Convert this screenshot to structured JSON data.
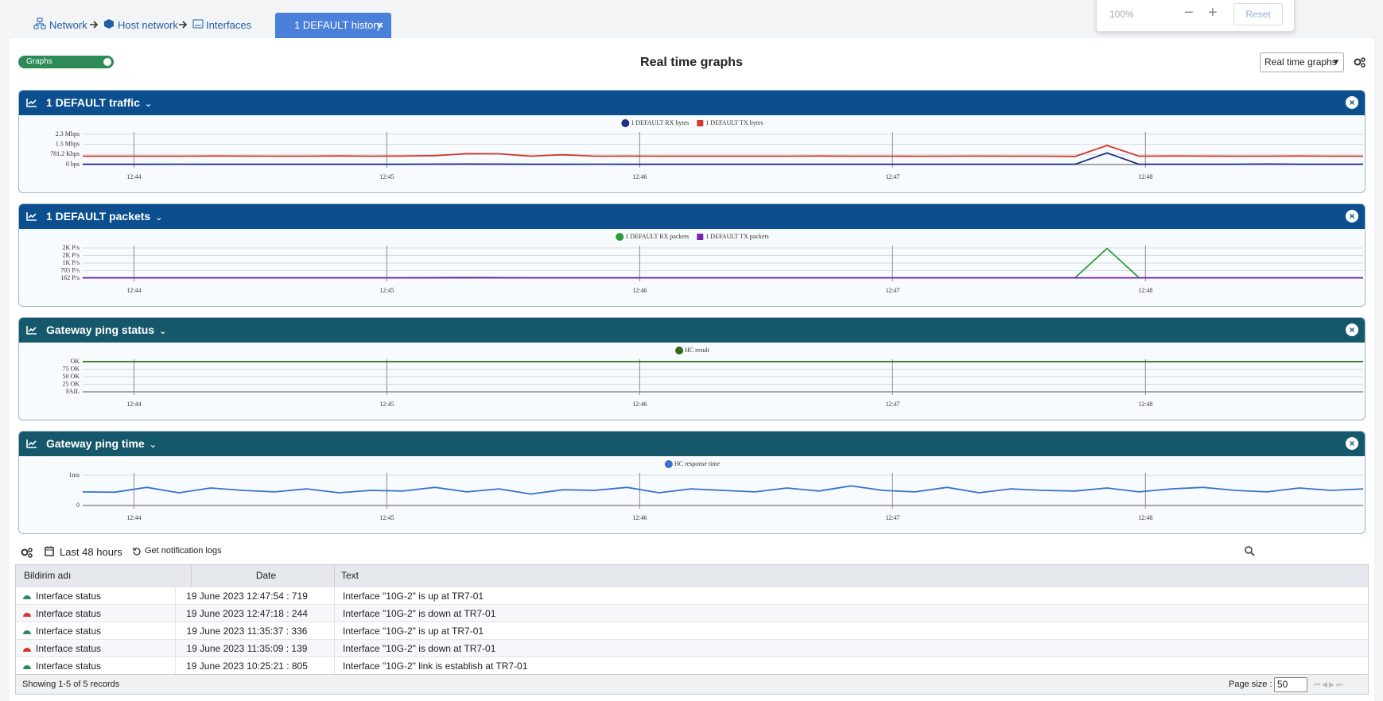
{
  "breadcrumb": [
    "Network",
    "Host network",
    "Interfaces"
  ],
  "tab": "1 DEFAULT history",
  "zoom": {
    "level": "100%",
    "reset": "Reset"
  },
  "toggle": "Graphs",
  "title": "Real time graphs",
  "view_select": "Real time graphs",
  "chart_data": [
    {
      "type": "line",
      "title": "1 DEFAULT traffic",
      "header_color": "#0b4f8e",
      "xticks": [
        "12:44",
        "12:45",
        "12:46",
        "12:47",
        "12:48"
      ],
      "ylim": [
        0,
        2343.6
      ],
      "yticks": [
        {
          "value": 0,
          "label": "0 bps"
        },
        {
          "value": 781.2,
          "label": "781.2 Kbps"
        },
        {
          "value": 1562.4,
          "label": "1.5 Mbps"
        },
        {
          "value": 2343.6,
          "label": "2.3 Mbps"
        }
      ],
      "series": [
        {
          "name": "1 DEFAULT RX bytes",
          "color": "#1f2d86",
          "marker": "circle",
          "values": [
            20,
            20,
            20,
            25,
            20,
            20,
            20,
            20,
            20,
            20,
            20,
            30,
            40,
            30,
            20,
            20,
            25,
            20,
            20,
            20,
            20,
            20,
            20,
            20,
            20,
            20,
            20,
            20,
            20,
            20,
            20,
            20,
            900,
            20,
            20,
            20,
            20,
            40,
            20,
            20,
            20
          ]
        },
        {
          "name": "1 DEFAULT TX bytes",
          "color": "#d0392b",
          "marker": "square",
          "values": [
            650,
            650,
            645,
            650,
            660,
            655,
            650,
            645,
            665,
            650,
            660,
            690,
            840,
            830,
            650,
            760,
            650,
            655,
            650,
            650,
            650,
            645,
            650,
            660,
            650,
            650,
            640,
            650,
            655,
            645,
            650,
            630,
            1480,
            650,
            660,
            655,
            650,
            650,
            660,
            650,
            650
          ]
        }
      ]
    },
    {
      "type": "line",
      "title": "1 DEFAULT packets",
      "header_color": "#0b4f8e",
      "xticks": [
        "12:44",
        "12:45",
        "12:46",
        "12:47",
        "12:48"
      ],
      "ylim": [
        162,
        2334
      ],
      "yticks": [
        {
          "value": 162,
          "label": "162 P/s"
        },
        {
          "value": 705,
          "label": "705 P/s"
        },
        {
          "value": 1248,
          "label": "1K P/s"
        },
        {
          "value": 1791,
          "label": "2K P/s"
        },
        {
          "value": 2334,
          "label": "2K P/s"
        }
      ],
      "series": [
        {
          "name": "1 DEFAULT RX packets",
          "color": "#2f9a3a",
          "marker": "circle",
          "values": [
            190,
            190,
            190,
            190,
            190,
            190,
            190,
            190,
            190,
            190,
            190,
            200,
            210,
            200,
            190,
            190,
            190,
            190,
            190,
            190,
            190,
            190,
            190,
            190,
            190,
            190,
            190,
            190,
            190,
            190,
            190,
            190,
            2300,
            190,
            190,
            190,
            190,
            190,
            190,
            190,
            190
          ]
        },
        {
          "name": "1 DEFAULT TX packets",
          "color": "#7a1fb0",
          "marker": "square",
          "values": [
            185,
            185,
            185,
            186,
            185,
            185,
            185,
            185,
            185,
            185,
            185,
            190,
            195,
            190,
            185,
            185,
            186,
            185,
            185,
            185,
            185,
            185,
            185,
            185,
            185,
            185,
            185,
            185,
            185,
            185,
            185,
            185,
            188,
            185,
            185,
            185,
            185,
            187,
            185,
            185,
            185
          ]
        }
      ]
    },
    {
      "type": "line",
      "title": "Gateway ping status",
      "header_color": "#16586b",
      "xticks": [
        "12:44",
        "12:45",
        "12:46",
        "12:47",
        "12:48"
      ],
      "ylim": [
        0,
        100
      ],
      "yticks": [
        {
          "value": 0,
          "label": "FAIL"
        },
        {
          "value": 25,
          "label": "25 OK"
        },
        {
          "value": 50,
          "label": "50 OK"
        },
        {
          "value": 75,
          "label": "75 OK"
        },
        {
          "value": 100,
          "label": "OK"
        }
      ],
      "series": [
        {
          "name": "HC result",
          "color": "#2e6b12",
          "marker": "circle",
          "values": [
            100,
            100,
            100,
            100,
            100,
            100,
            100,
            100,
            100,
            100,
            100
          ]
        }
      ]
    },
    {
      "type": "line",
      "title": "Gateway ping time",
      "header_color": "#16586b",
      "xticks": [
        "12:44",
        "12:45",
        "12:46",
        "12:47",
        "12:48"
      ],
      "ylim": [
        0,
        1
      ],
      "yticks": [
        0,
        {
          "value": 1,
          "label": "1ms"
        }
      ],
      "series": [
        {
          "name": "HC response time",
          "color": "#3a6fd0",
          "marker": "circle",
          "values": [
            0.45,
            0.44,
            0.6,
            0.42,
            0.58,
            0.5,
            0.45,
            0.55,
            0.42,
            0.5,
            0.48,
            0.6,
            0.45,
            0.55,
            0.38,
            0.52,
            0.5,
            0.6,
            0.42,
            0.55,
            0.5,
            0.45,
            0.58,
            0.48,
            0.65,
            0.5,
            0.45,
            0.6,
            0.42,
            0.55,
            0.5,
            0.48,
            0.58,
            0.45,
            0.55,
            0.6,
            0.5,
            0.45,
            0.58,
            0.5,
            0.55
          ]
        }
      ]
    }
  ],
  "toolbar": {
    "range": "Last 48 hours",
    "logs": "Get notification logs"
  },
  "table": {
    "columns": [
      "Bildirim adı",
      "Date",
      "Text"
    ],
    "row_icons": [
      "#2e8b57",
      "#d9342b",
      "#2e8b57",
      "#d9342b",
      "#2e8b57"
    ],
    "rows": [
      [
        "Interface status",
        "19 June 2023 12:47:54 : 719",
        "Interface \"10G-2\" is up at TR7-01"
      ],
      [
        "Interface status",
        "19 June 2023 12:47:18 : 244",
        "Interface \"10G-2\" is down at TR7-01"
      ],
      [
        "Interface status",
        "19 June 2023 11:35:37 : 336",
        "Interface \"10G-2\" is up at TR7-01"
      ],
      [
        "Interface status",
        "19 June 2023 11:35:09 : 139",
        "Interface \"10G-2\" is down at TR7-01"
      ],
      [
        "Interface status",
        "19 June 2023 10:25:21 : 805",
        "Interface \"10G-2\" link is establish at TR7-01"
      ]
    ]
  },
  "pagination": {
    "summary": "Showing 1-5 of 5 records",
    "page_size_label": "Page size :",
    "page_size": 50
  }
}
